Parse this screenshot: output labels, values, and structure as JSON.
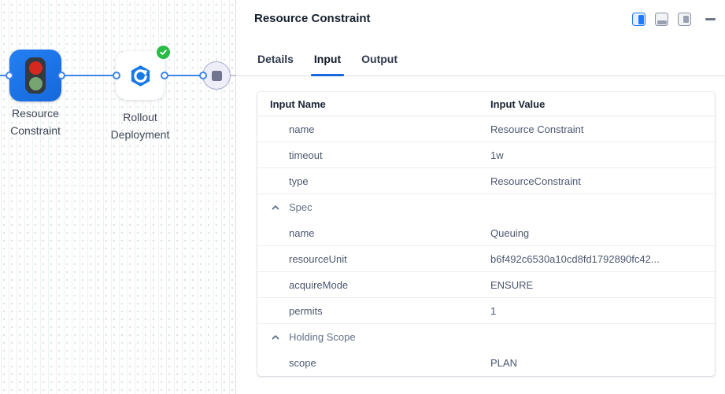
{
  "canvas": {
    "nodes": [
      {
        "label": "Resource Constraint",
        "icon": "traffic-light-icon"
      },
      {
        "label": "Rollout Deployment",
        "icon": "rollout-icon",
        "status_icon": "check-icon"
      }
    ],
    "end_node_icon": "stop-icon"
  },
  "panel": {
    "title": "Resource Constraint",
    "toolbar": {
      "icons": [
        {
          "name": "panel-right-icon",
          "active": true
        },
        {
          "name": "panel-bottom-icon",
          "active": false
        },
        {
          "name": "panel-float-icon",
          "active": false
        },
        {
          "name": "minimize-icon",
          "active": false
        }
      ]
    },
    "tabs": [
      {
        "label": "Details",
        "active": false
      },
      {
        "label": "Input",
        "active": true
      },
      {
        "label": "Output",
        "active": false
      }
    ],
    "table": {
      "columns": [
        "Input Name",
        "Input Value"
      ],
      "rows": [
        {
          "kind": "row",
          "name": "name",
          "value": "Resource Constraint"
        },
        {
          "kind": "row",
          "name": "timeout",
          "value": "1w"
        },
        {
          "kind": "row",
          "name": "type",
          "value": "ResourceConstraint"
        },
        {
          "kind": "section",
          "name": "Spec",
          "collapsed": false
        },
        {
          "kind": "row",
          "name": "name",
          "value": "Queuing"
        },
        {
          "kind": "row",
          "name": "resourceUnit",
          "value": "b6f492c6530a10cd8fd1792890fc42..."
        },
        {
          "kind": "row",
          "name": "acquireMode",
          "value": "ENSURE"
        },
        {
          "kind": "row",
          "name": "permits",
          "value": "1"
        },
        {
          "kind": "section",
          "name": "Holding Scope",
          "collapsed": false
        },
        {
          "kind": "row",
          "name": "scope",
          "value": "PLAN"
        }
      ]
    }
  },
  "colors": {
    "accent_blue": "#1D7AFC",
    "node_blue": "#1974E8",
    "edge_blue": "#3D85EA",
    "tab_underline": "#1868DB",
    "success_green": "#2ABB45",
    "traffic_red": "#D6281E",
    "traffic_green": "#76A572",
    "end_node_gray": "#70748F"
  }
}
